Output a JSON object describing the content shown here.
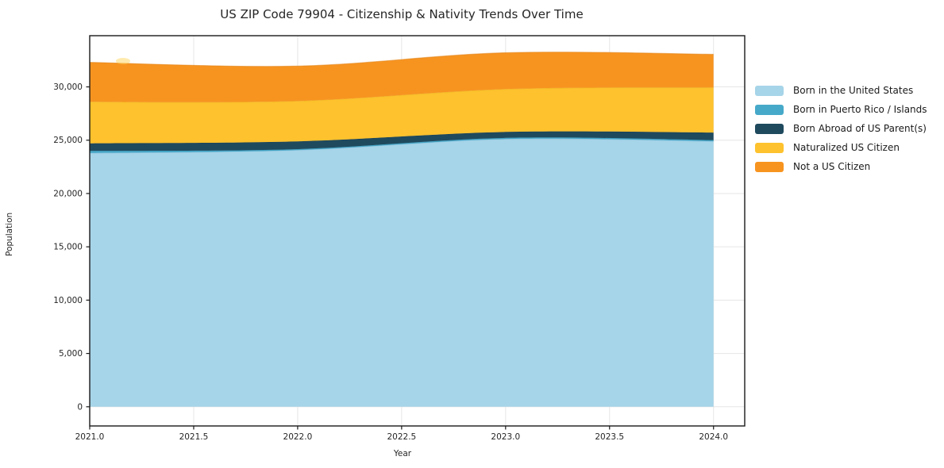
{
  "title": "US ZIP Code 79904 - Citizenship & Nativity Trends Over Time",
  "chart_data": {
    "type": "area",
    "stacked": true,
    "title": "US ZIP Code 79904 - Citizenship & Nativity Trends Over Time",
    "xlabel": "Year",
    "ylabel": "Population",
    "x": [
      2021,
      2022,
      2023,
      2024
    ],
    "series": [
      {
        "name": "Born in the United States",
        "color": "#a6d4e8",
        "edge": "#7db8d8",
        "values": [
          23800,
          24070,
          25110,
          24900
        ]
      },
      {
        "name": "Born in Puerto Rico / Islands",
        "color": "#47a9c9",
        "edge": "#3391b4",
        "values": [
          200,
          90,
          110,
          110
        ]
      },
      {
        "name": "Born Abroad of US Parent(s)",
        "color": "#1f4a5e",
        "edge": "#16384a",
        "values": [
          700,
          730,
          560,
          700
        ]
      },
      {
        "name": "Naturalized US Citizen",
        "color": "#fdc22d",
        "edge": "#e8a81a",
        "values": [
          3900,
          3790,
          4020,
          4240
        ]
      },
      {
        "name": "Not a US Citizen",
        "color": "#f79420",
        "edge": "#e07f12",
        "values": [
          3700,
          3270,
          3400,
          3100
        ]
      }
    ],
    "xlim": [
      2021,
      2024.15
    ],
    "ylim": [
      -1800,
      34800
    ],
    "xticks": [
      2021.0,
      2021.5,
      2022.0,
      2022.5,
      2023.0,
      2023.5,
      2024.0
    ],
    "xtick_labels": [
      "2021.0",
      "2021.5",
      "2022.0",
      "2022.5",
      "2023.0",
      "2023.5",
      "2024.0"
    ],
    "yticks": [
      0,
      5000,
      10000,
      15000,
      20000,
      25000,
      30000
    ],
    "ytick_labels": [
      "0",
      "5,000",
      "10,000",
      "15,000",
      "20,000",
      "25,000",
      "30,000"
    ],
    "grid": true,
    "legend_position": "right",
    "grid_color": "#e6e6e6",
    "spine_color": "#1a1a1a",
    "tick_label_color": "#262626"
  }
}
